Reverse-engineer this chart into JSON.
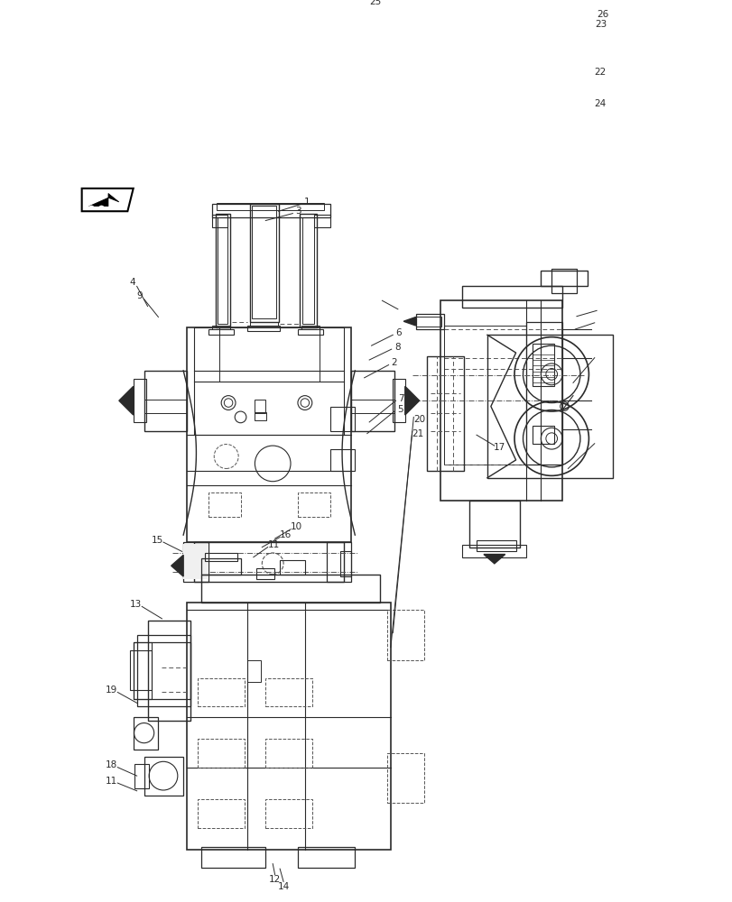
{
  "bg_color": "#ffffff",
  "lc": "#2a2a2a",
  "dc": "#555555",
  "figsize": [
    8.12,
    10.0
  ],
  "dpi": 100
}
